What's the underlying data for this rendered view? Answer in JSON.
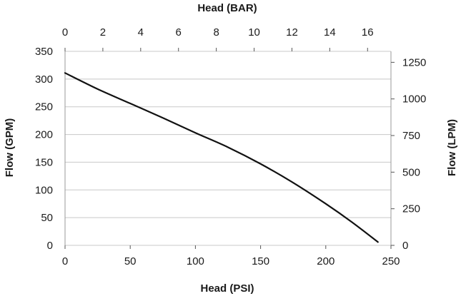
{
  "chart_data": {
    "type": "line",
    "title": "",
    "xlabel": "Head (PSI)",
    "x2label": "Head (BAR)",
    "ylabel": "Flow (GPM)",
    "y2label": "Flow (LPM)",
    "xlim": [
      0,
      250
    ],
    "x2lim": [
      0,
      17.237
    ],
    "ylim": [
      0,
      350
    ],
    "y2lim": [
      0,
      1324.9
    ],
    "x_ticks": [
      0,
      50,
      100,
      150,
      200,
      250
    ],
    "x2_ticks": [
      0,
      2,
      4,
      6,
      8,
      10,
      12,
      14,
      16
    ],
    "y_ticks": [
      0,
      50,
      100,
      150,
      200,
      250,
      300,
      350
    ],
    "y2_ticks": [
      0,
      250,
      500,
      750,
      1000,
      1250
    ],
    "x_tick_labels": [
      "0",
      "50",
      "100",
      "150",
      "200",
      "250"
    ],
    "x2_tick_labels": [
      "0",
      "2",
      "4",
      "6",
      "8",
      "10",
      "12",
      "14",
      "16"
    ],
    "y_tick_labels": [
      "0",
      "50",
      "100",
      "150",
      "200",
      "250",
      "300",
      "350"
    ],
    "y2_tick_labels": [
      "0",
      "250",
      "500",
      "750",
      "1000",
      "1250"
    ],
    "grid": "horizontal",
    "legend": "none",
    "series": [
      {
        "x": [
          0,
          25,
          50,
          75,
          100,
          125,
          150,
          175,
          200,
          220,
          240
        ],
        "y": [
          311,
          282,
          256,
          230,
          203,
          177,
          147,
          113,
          75,
          42,
          6
        ],
        "color": "#111111"
      }
    ]
  }
}
